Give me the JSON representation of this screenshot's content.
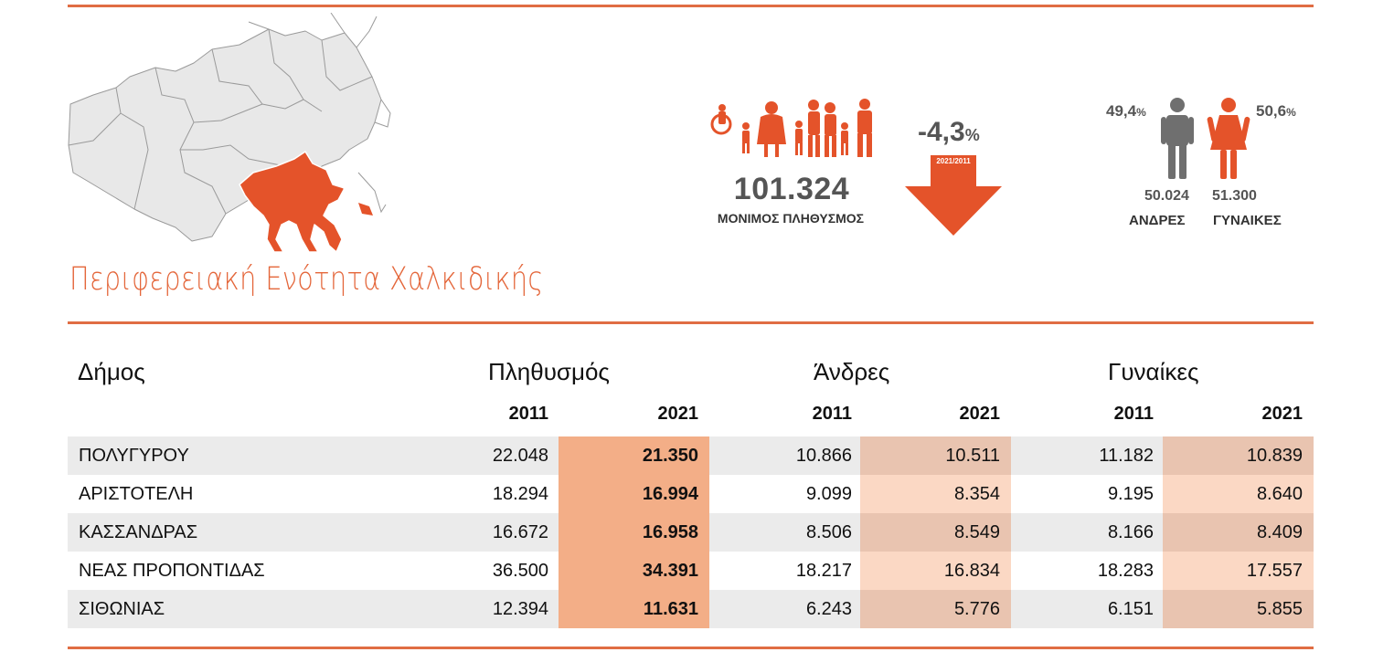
{
  "colors": {
    "accent": "#e4663a",
    "pop_highlight": "#f3ae87",
    "gender_highlight": "#fbd8c4",
    "icon_grey": "#6f6f6f"
  },
  "header": {
    "region_title": "Περιφερειακή Ενότητα Χαλκιδικής"
  },
  "population": {
    "total": "101.324",
    "label": "ΜΟΝΙΜΟΣ ΠΛΗΘΥΣΜΟΣ",
    "change_value": "-4,3",
    "change_unit": "%",
    "change_period": "2021/2011"
  },
  "gender": {
    "male": {
      "pct_value": "49,4",
      "pct_unit": "%",
      "count": "50.024",
      "label": "ΑΝΔΡΕΣ"
    },
    "female": {
      "pct_value": "50,6",
      "pct_unit": "%",
      "count": "51.300",
      "label": "ΓΥΝΑΙΚΕΣ"
    }
  },
  "table": {
    "headers": {
      "municipality": "Δήμος",
      "population": "Πληθυσμός",
      "men": "Άνδρες",
      "women": "Γυναίκες"
    },
    "years": [
      "2011",
      "2021"
    ],
    "rows": [
      {
        "name": "ΠΟΛΥΓΥΡΟΥ",
        "pop_2011": "22.048",
        "pop_2021": "21.350",
        "men_2011": "10.866",
        "men_2021": "10.511",
        "women_2011": "11.182",
        "women_2021": "10.839"
      },
      {
        "name": "ΑΡΙΣΤΟΤΕΛΗ",
        "pop_2011": "18.294",
        "pop_2021": "16.994",
        "men_2011": "9.099",
        "men_2021": "8.354",
        "women_2011": "9.195",
        "women_2021": "8.640"
      },
      {
        "name": "ΚΑΣΣΑΝΔΡΑΣ",
        "pop_2011": "16.672",
        "pop_2021": "16.958",
        "men_2011": "8.506",
        "men_2021": "8.549",
        "women_2011": "8.166",
        "women_2021": "8.409"
      },
      {
        "name": "ΝΕΑΣ ΠΡΟΠΟΝΤΙΔΑΣ",
        "pop_2011": "36.500",
        "pop_2021": "34.391",
        "men_2011": "18.217",
        "men_2021": "16.834",
        "women_2011": "18.283",
        "women_2021": "17.557"
      },
      {
        "name": "ΣΙΘΩΝΙΑΣ",
        "pop_2011": "12.394",
        "pop_2021": "11.631",
        "men_2011": "6.243",
        "men_2021": "5.776",
        "women_2011": "6.151",
        "women_2021": "5.855"
      }
    ]
  }
}
